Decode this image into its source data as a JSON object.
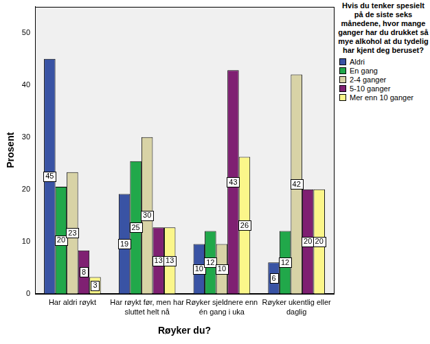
{
  "chart_data": {
    "type": "bar",
    "x_label": "Røyker du?",
    "y_label": "Prosent",
    "legend_title": "Hvis du tenker spesielt på de siste seks månedene, hvor mange ganger har du drukket så mye alkohol at du tydelig har kjent deg beruset?",
    "categories": [
      "Har aldri røykt",
      "Har røykt før, men har sluttet helt nå",
      "Røyker sjeldnere enn én gang i uka",
      "Røyker ukentlig eller daglig"
    ],
    "series": [
      {
        "name": "Aldri",
        "color": "#3953a4",
        "values": [
          45.0,
          19.1,
          9.5,
          6.0
        ],
        "value_labels": [
          "45",
          "19",
          "10",
          "6"
        ]
      },
      {
        "name": "En gang",
        "color": "#21a84a",
        "values": [
          20.5,
          25.4,
          12.0,
          12.0
        ],
        "value_labels": [
          "20",
          "25",
          "12",
          "12"
        ]
      },
      {
        "name": "2-4 ganger",
        "color": "#d8d3a6",
        "values": [
          23.3,
          30.0,
          9.5,
          42.0
        ],
        "value_labels": [
          "23",
          "30",
          "10",
          "42"
        ]
      },
      {
        "name": "5-10 ganger",
        "color": "#7f2072",
        "values": [
          8.3,
          12.7,
          42.8,
          20.0
        ],
        "value_labels": [
          "8",
          "13",
          "43",
          "20"
        ]
      },
      {
        "name": "Mer enn 10 ganger",
        "color": "#fbf68a",
        "values": [
          3.2,
          12.7,
          26.2,
          20.0
        ],
        "value_labels": [
          "3",
          "13",
          "26",
          "20"
        ]
      }
    ],
    "ylim": [
      0,
      55
    ],
    "yticks": [
      0,
      10,
      20,
      30,
      40,
      50
    ],
    "grid": false,
    "legend": "right",
    "data_labels": true
  }
}
